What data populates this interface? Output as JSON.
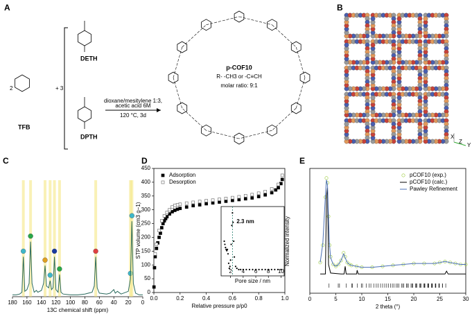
{
  "panel_labels": [
    "A",
    "B",
    "C",
    "D",
    "E"
  ],
  "scheme": {
    "tfb_coefficient": "2",
    "tfb": "TFB",
    "plus": "+ 3",
    "deth": "DETH",
    "dpth": "DPTH",
    "conditions": [
      "dioxane/mesitylene 1:3,",
      "acetic acid 6M",
      "120 °C, 3d"
    ],
    "product": "p-COF10",
    "substituent": "R- -CH3 or -C≡CH",
    "ratio": "molar ratio: 9:1"
  },
  "crystal": {
    "axes": [
      "X",
      "Z",
      "Y"
    ]
  },
  "chart_data": [
    {
      "type": "line",
      "xlabel": "13C chemical shift (ppm)",
      "color": "#2b6b5e",
      "xlim": [
        180,
        0
      ],
      "xticks": [
        180,
        160,
        140,
        120,
        100,
        80,
        60,
        40,
        20,
        0
      ],
      "ylim": [
        0,
        1
      ],
      "x": [
        180,
        175,
        170,
        167,
        165,
        163,
        160,
        157,
        155,
        153,
        150,
        147,
        145,
        140,
        137,
        135,
        133,
        130,
        128,
        126,
        124,
        122,
        120,
        117,
        115,
        113,
        110,
        100,
        90,
        80,
        70,
        67,
        65,
        63,
        60,
        50,
        45,
        40,
        38,
        35,
        30,
        20,
        17,
        15,
        13,
        10,
        5,
        0
      ],
      "values": [
        0.02,
        0.02,
        0.03,
        0.05,
        0.45,
        0.06,
        0.08,
        0.15,
        0.62,
        0.15,
        0.05,
        0.07,
        0.05,
        0.07,
        0.15,
        0.35,
        0.12,
        0.1,
        0.18,
        0.08,
        0.1,
        0.45,
        0.08,
        0.05,
        0.25,
        0.05,
        0.03,
        0.02,
        0.02,
        0.03,
        0.05,
        0.12,
        0.45,
        0.1,
        0.04,
        0.03,
        0.04,
        0.08,
        0.04,
        0.06,
        0.03,
        0.06,
        0.2,
        0.85,
        0.15,
        0.04,
        0.02,
        0.02
      ]
    },
    {
      "type": "scatter",
      "xlabel": "Relative pressure p/p0",
      "ylabel": "STP volume (cm3 g−1)",
      "xlim": [
        0,
        1
      ],
      "xticks": [
        {
          "value": 0,
          "label": "0.0"
        },
        0.2,
        0.4,
        0.6,
        0.8,
        {
          "value": 1,
          "label": "1.0"
        }
      ],
      "ylim": [
        0,
        450
      ],
      "yticks": [
        0,
        50,
        100,
        150,
        200,
        250,
        300,
        350,
        400,
        450
      ],
      "legend": "upper left",
      "series": [
        {
          "name": "Adsorption",
          "color": "#000000",
          "marker": "square",
          "x": [
            0.001,
            0.005,
            0.01,
            0.02,
            0.03,
            0.04,
            0.05,
            0.06,
            0.07,
            0.08,
            0.09,
            0.1,
            0.12,
            0.14,
            0.16,
            0.18,
            0.2,
            0.25,
            0.3,
            0.35,
            0.4,
            0.45,
            0.5,
            0.55,
            0.6,
            0.65,
            0.7,
            0.75,
            0.8,
            0.85,
            0.9,
            0.93,
            0.95,
            0.97,
            0.98
          ],
          "values": [
            20,
            90,
            130,
            160,
            180,
            200,
            215,
            235,
            250,
            260,
            268,
            275,
            285,
            293,
            298,
            302,
            305,
            310,
            315,
            318,
            322,
            325,
            328,
            331,
            334,
            337,
            340,
            343,
            348,
            354,
            362,
            372,
            380,
            395,
            410
          ]
        },
        {
          "name": "Desorption",
          "color": "#777777",
          "marker": "open-square",
          "x": [
            0.98,
            0.95,
            0.9,
            0.85,
            0.8,
            0.75,
            0.7,
            0.65,
            0.6,
            0.55,
            0.5,
            0.45,
            0.4,
            0.35,
            0.3,
            0.25,
            0.2,
            0.18,
            0.16,
            0.14,
            0.12,
            0.1,
            0.08,
            0.06,
            0.04,
            0.02,
            0.01
          ],
          "values": [
            425,
            392,
            376,
            366,
            360,
            355,
            351,
            347,
            344,
            341,
            338,
            335,
            333,
            330,
            327,
            324,
            320,
            318,
            316,
            310,
            300,
            290,
            278,
            260,
            225,
            175,
            140
          ]
        }
      ]
    },
    {
      "type": "scatter",
      "xlabel": "Pore size / nm",
      "ylabel": "Normalized intensity",
      "color": "#000000",
      "annotation": {
        "text": "2.3 nm",
        "x": 2.3,
        "color": "#1f7a6a"
      },
      "xlim": [
        0.5,
        10.5
      ],
      "xticks": [
        2,
        4,
        6,
        8,
        10
      ],
      "ylim": [
        0,
        1.1
      ],
      "x": [
        1.0,
        1.1,
        1.2,
        1.3,
        1.4,
        1.5,
        1.6,
        1.7,
        1.8,
        1.9,
        2.0,
        2.1,
        2.2,
        2.3,
        2.4,
        2.5,
        2.6,
        2.8,
        3.0,
        3.3,
        3.6,
        4,
        4.5,
        5,
        5.5,
        6,
        6.5,
        7,
        7.5,
        8,
        8.5,
        9,
        9.5,
        10
      ],
      "values": [
        0.55,
        0.5,
        0.45,
        0.42,
        0.4,
        0.42,
        0.35,
        0.2,
        0.12,
        0.15,
        0.25,
        0.5,
        0.8,
        1.0,
        0.85,
        0.55,
        0.3,
        0.15,
        0.12,
        0.1,
        0.1,
        0.1,
        0.1,
        0.1,
        0.1,
        0.1,
        0.1,
        0.1,
        0.1,
        0.1,
        0.1,
        0.1,
        0.1,
        0.1
      ]
    },
    {
      "type": "line",
      "xlabel": "2 theta (°)",
      "xlim": [
        0,
        30
      ],
      "xticks": [
        0,
        5,
        10,
        15,
        20,
        25,
        30
      ],
      "ylim": [
        -0.2,
        1.1
      ],
      "legend": "upper right",
      "series": [
        {
          "name": "pCOF10 (exp.)",
          "color": "#9ccc3a",
          "marker": "open-circle",
          "x": [
            2,
            2.5,
            3,
            3.2,
            3.4,
            3.6,
            3.8,
            4,
            4.5,
            5,
            5.5,
            6,
            6.5,
            6.8,
            7.2,
            7.6,
            8,
            9,
            10,
            12,
            14,
            16,
            18,
            20,
            22,
            24,
            25,
            26,
            27,
            28,
            29,
            30
          ],
          "values": [
            0.12,
            0.3,
            0.8,
            1.0,
            0.95,
            0.6,
            0.3,
            0.18,
            0.1,
            0.08,
            0.1,
            0.14,
            0.22,
            0.18,
            0.12,
            0.1,
            0.09,
            0.08,
            0.07,
            0.07,
            0.08,
            0.09,
            0.1,
            0.11,
            0.11,
            0.11,
            0.12,
            0.13,
            0.12,
            0.11,
            0.1,
            0.1
          ]
        },
        {
          "name": "pCOF10 (calc.)",
          "color": "#000000",
          "marker": "line",
          "x": [
            2,
            3,
            3.2,
            3.4,
            3.6,
            4,
            6,
            6.6,
            6.8,
            7,
            9,
            9.1,
            9.3,
            12,
            20,
            25,
            26,
            26.3,
            26.6,
            30
          ],
          "values": [
            0,
            0,
            0.8,
            0.9,
            0.1,
            0.01,
            0,
            0,
            0.08,
            0,
            0,
            0.04,
            0,
            0,
            0,
            0,
            0,
            0.03,
            0,
            0
          ]
        },
        {
          "name": "Pawley Refinement",
          "color": "#4a6fb5",
          "marker": "line",
          "x": [
            2,
            2.5,
            3,
            3.2,
            3.4,
            3.6,
            3.8,
            4,
            4.5,
            5,
            5.5,
            6,
            6.5,
            6.8,
            7.2,
            7.6,
            8,
            9,
            10,
            12,
            14,
            16,
            18,
            20,
            22,
            24,
            25,
            26,
            27,
            28,
            29,
            30
          ],
          "values": [
            0.12,
            0.32,
            0.82,
            0.98,
            0.93,
            0.58,
            0.3,
            0.17,
            0.1,
            0.08,
            0.1,
            0.14,
            0.21,
            0.17,
            0.12,
            0.1,
            0.09,
            0.08,
            0.07,
            0.07,
            0.08,
            0.09,
            0.1,
            0.11,
            0.11,
            0.11,
            0.12,
            0.13,
            0.12,
            0.11,
            0.1,
            0.1
          ]
        }
      ]
    }
  ]
}
